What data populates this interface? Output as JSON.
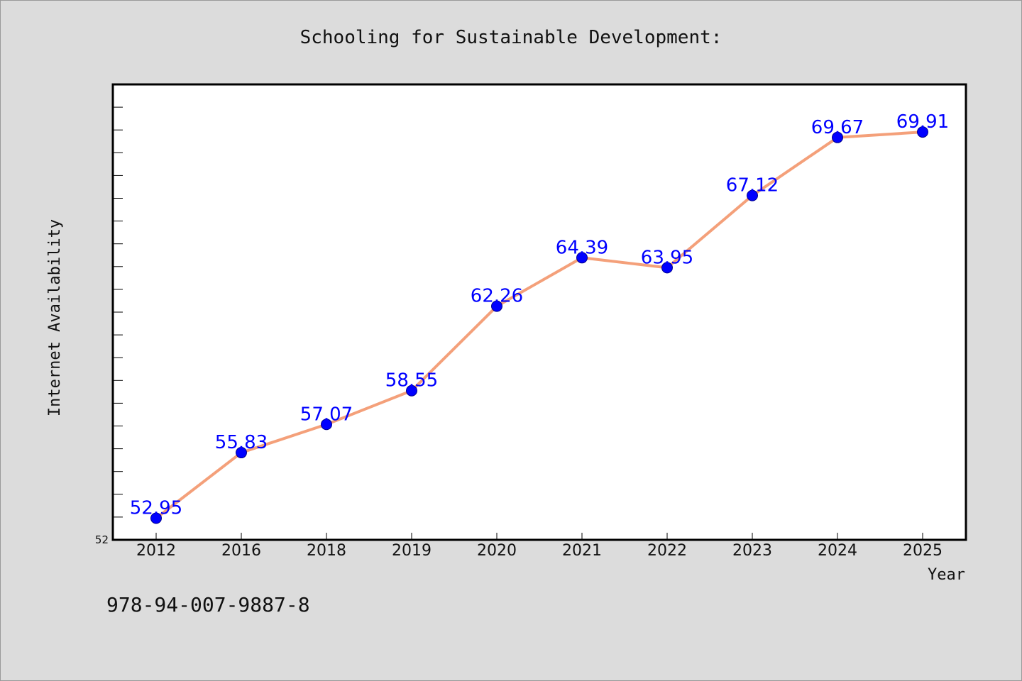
{
  "chart_data": {
    "type": "line",
    "title": "Schooling for Sustainable Development:",
    "xlabel": "Year",
    "ylabel": "Internet Availability",
    "categories": [
      "2012",
      "2016",
      "2018",
      "2019",
      "2020",
      "2021",
      "2022",
      "2023",
      "2024",
      "2025"
    ],
    "series": [
      {
        "values": [
          52.95,
          55.83,
          57.07,
          58.55,
          62.26,
          64.39,
          63.95,
          67.12,
          69.67,
          69.91
        ],
        "data_labels": [
          "52.95",
          "55.83",
          "57.07",
          "58.55",
          "62.26",
          "64.39",
          "63.95",
          "67.12",
          "69.67",
          "69.91"
        ],
        "line_color": "#f4a07a",
        "marker_color": "#0000ff"
      }
    ],
    "ylim": [
      52,
      72
    ],
    "y_tick_labels": [
      "52"
    ],
    "grid": false,
    "legend": "none"
  },
  "footer": {
    "isbn": "978-94-007-9887-8"
  },
  "colors": {
    "background": "#dcdcdc",
    "plot_background": "#ffffff",
    "label_color": "#0000ff"
  }
}
